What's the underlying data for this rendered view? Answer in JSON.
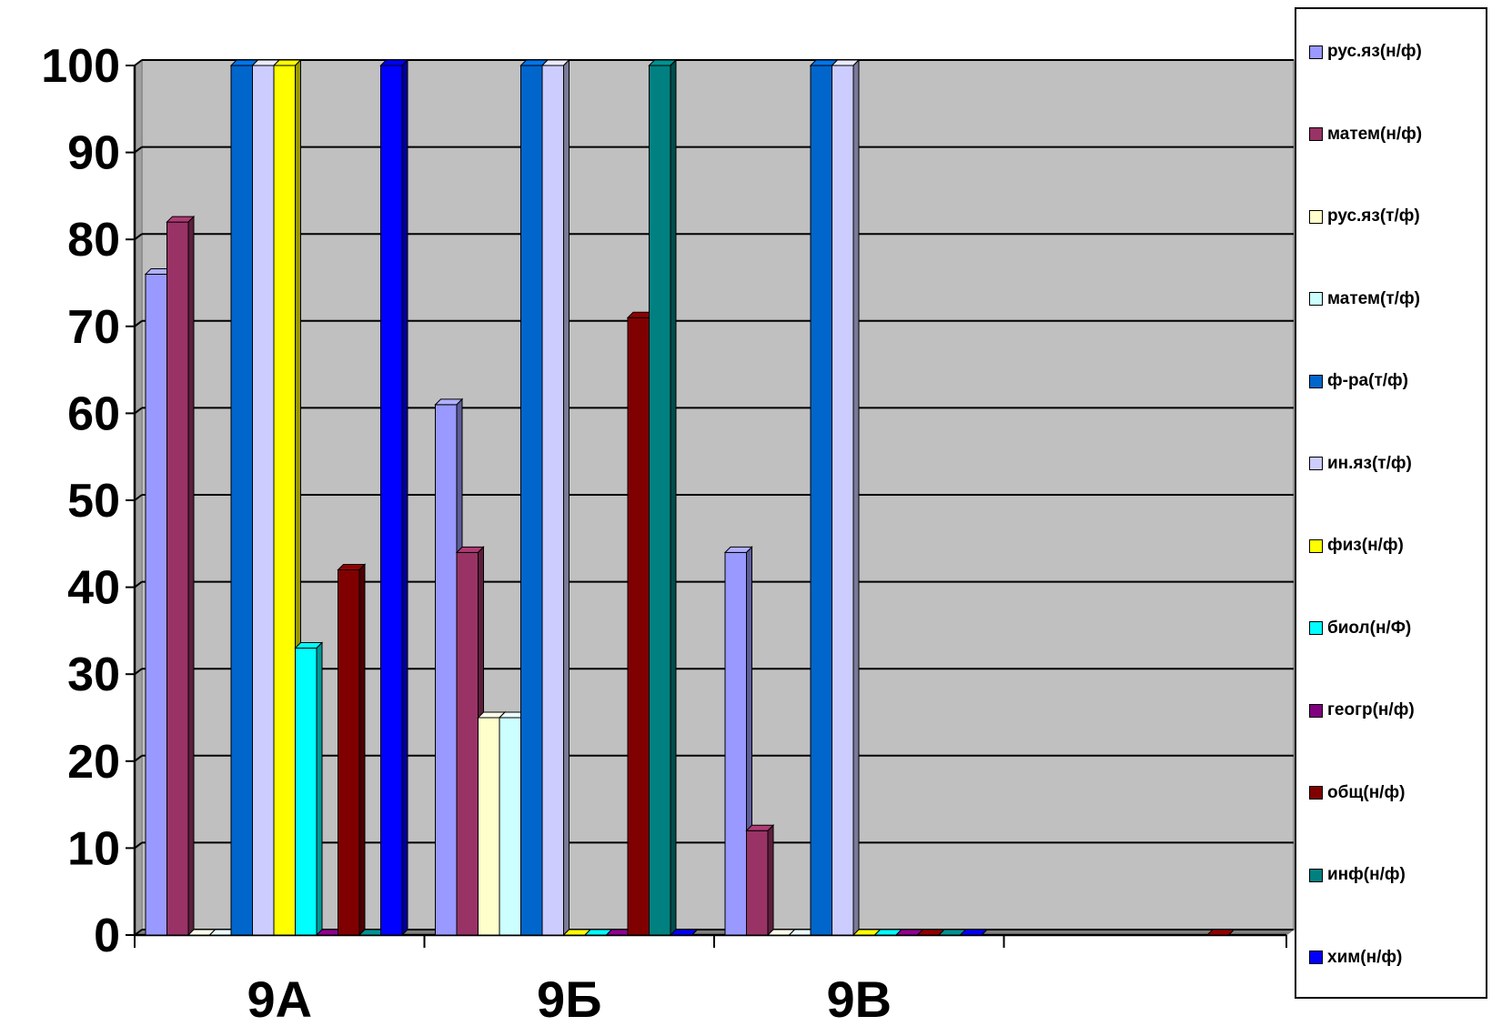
{
  "chart_data": {
    "type": "bar",
    "title": "",
    "xlabel": "",
    "ylabel": "",
    "ylim": [
      0,
      100
    ],
    "yticks": [
      "0",
      "10",
      "20",
      "30",
      "40",
      "50",
      "60",
      "70",
      "80",
      "90",
      "100"
    ],
    "categories": [
      "9А",
      "9Б",
      "9В",
      ""
    ],
    "grid": true,
    "legend_position": "right",
    "series": [
      {
        "name": "рус.яз(н/ф)",
        "color": "#9999ff",
        "values": [
          76,
          61,
          44,
          0
        ]
      },
      {
        "name": "матем(н/ф)",
        "color": "#993366",
        "values": [
          82,
          44,
          12,
          0
        ]
      },
      {
        "name": "рус.яз(т/ф)",
        "color": "#ffffcc",
        "values": [
          0,
          25,
          0,
          0
        ]
      },
      {
        "name": "матем(т/ф)",
        "color": "#ccffff",
        "values": [
          0,
          25,
          0,
          0
        ]
      },
      {
        "name": "ф-ра(т/ф)",
        "color": "#0066cc",
        "values": [
          100,
          100,
          100,
          0
        ]
      },
      {
        "name": "ин.яз(т/ф)",
        "color": "#ccccff",
        "values": [
          100,
          100,
          100,
          0
        ]
      },
      {
        "name": "физ(н/ф)",
        "color": "#ffff00",
        "values": [
          100,
          0,
          0,
          0
        ]
      },
      {
        "name": "биол(н/Ф)",
        "color": "#00ffff",
        "values": [
          33,
          0,
          0,
          0
        ]
      },
      {
        "name": "геогр(н/ф)",
        "color": "#800080",
        "values": [
          0,
          0,
          0,
          0
        ]
      },
      {
        "name": "общ(н/ф)",
        "color": "#800000",
        "values": [
          42,
          71,
          0,
          0
        ]
      },
      {
        "name": "инф(н/ф)",
        "color": "#008080",
        "values": [
          0,
          100,
          0,
          0
        ]
      },
      {
        "name": "хим(н/ф)",
        "color": "#0000ff",
        "values": [
          100,
          0,
          0,
          0
        ]
      }
    ]
  }
}
